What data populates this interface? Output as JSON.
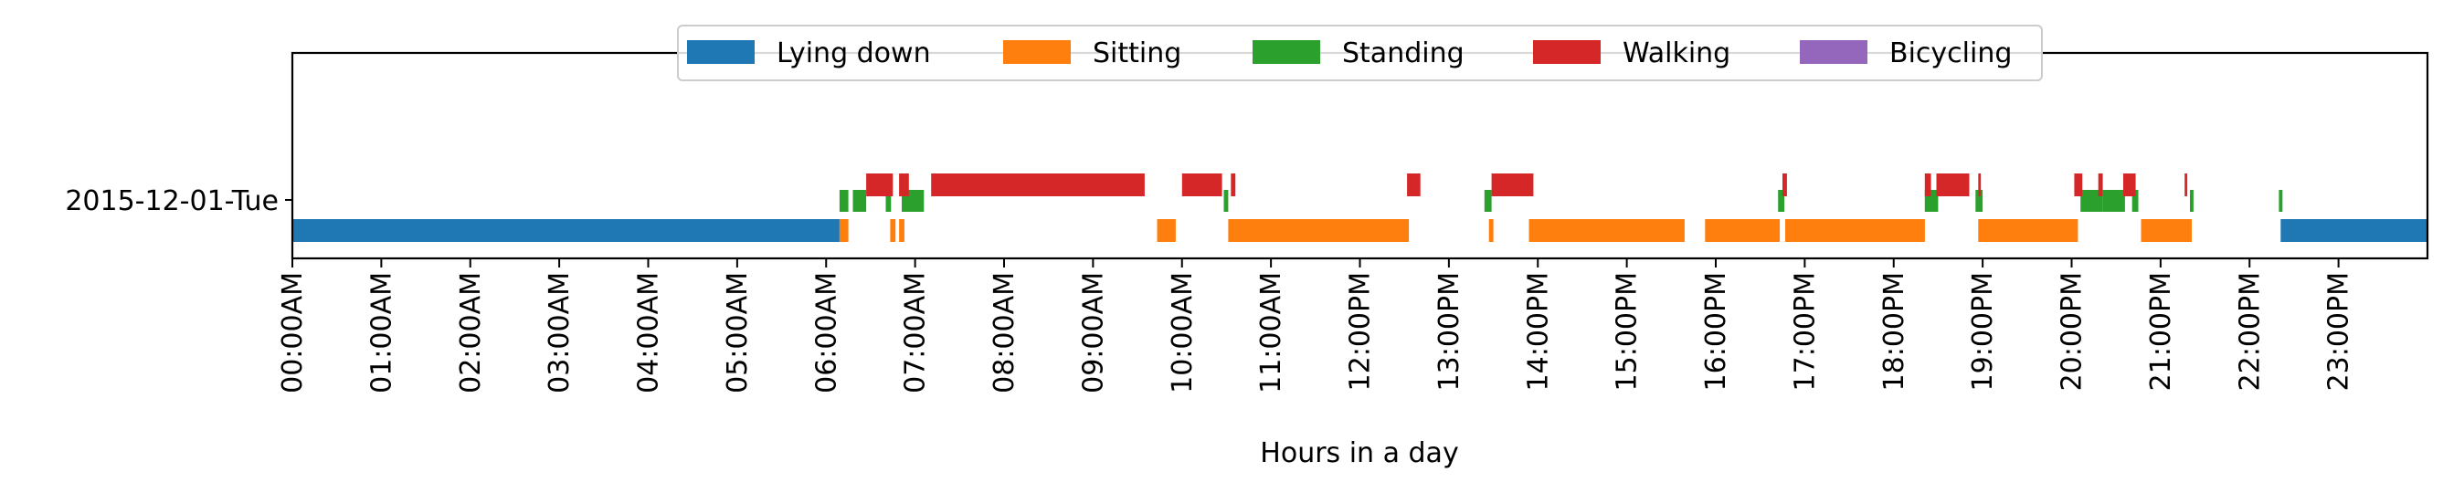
{
  "chart_data": {
    "type": "timeline",
    "title": "",
    "xlabel": "Hours in a day",
    "ylabel": "",
    "xlim": [
      0,
      24
    ],
    "grid": false,
    "legend_position": "top-center",
    "row_label": "2015-12-01-Tue",
    "x_tick_labels": [
      "00:00AM",
      "01:00AM",
      "02:00AM",
      "03:00AM",
      "04:00AM",
      "05:00AM",
      "06:00AM",
      "07:00AM",
      "08:00AM",
      "09:00AM",
      "10:00AM",
      "11:00AM",
      "12:00PM",
      "13:00PM",
      "14:00PM",
      "15:00PM",
      "16:00PM",
      "17:00PM",
      "18:00PM",
      "19:00PM",
      "20:00PM",
      "21:00PM",
      "22:00PM",
      "23:00PM"
    ],
    "series": [
      {
        "name": "Lying down",
        "color": "#1f77b4",
        "lane": "bottom",
        "segments": [
          [
            0.0,
            6.15
          ],
          [
            22.35,
            24.0
          ]
        ]
      },
      {
        "name": "Sitting",
        "color": "#ff7f0e",
        "lane": "bottom",
        "segments": [
          [
            6.15,
            6.25
          ],
          [
            6.72,
            6.78
          ],
          [
            6.82,
            6.88
          ],
          [
            9.72,
            9.93
          ],
          [
            10.52,
            12.55
          ],
          [
            13.45,
            13.5
          ],
          [
            13.9,
            15.65
          ],
          [
            15.88,
            16.72
          ],
          [
            16.78,
            18.35
          ],
          [
            18.95,
            20.07
          ],
          [
            20.78,
            21.35
          ]
        ]
      },
      {
        "name": "Standing",
        "color": "#2ca02c",
        "lane": "middle",
        "segments": [
          [
            6.15,
            6.25
          ],
          [
            6.3,
            6.45
          ],
          [
            6.67,
            6.73
          ],
          [
            6.85,
            7.1
          ],
          [
            10.47,
            10.52
          ],
          [
            13.4,
            13.48
          ],
          [
            16.7,
            16.77
          ],
          [
            18.35,
            18.5
          ],
          [
            18.92,
            19.0
          ],
          [
            20.1,
            20.35
          ],
          [
            20.35,
            20.6
          ],
          [
            20.68,
            20.75
          ],
          [
            21.33,
            21.37
          ],
          [
            22.33,
            22.37
          ]
        ]
      },
      {
        "name": "Walking",
        "color": "#d62728",
        "lane": "top",
        "segments": [
          [
            6.45,
            6.75
          ],
          [
            6.82,
            6.93
          ],
          [
            7.18,
            9.58
          ],
          [
            10.0,
            10.45
          ],
          [
            10.55,
            10.6
          ],
          [
            12.53,
            12.68
          ],
          [
            13.48,
            13.95
          ],
          [
            16.75,
            16.8
          ],
          [
            18.35,
            18.42
          ],
          [
            18.48,
            18.85
          ],
          [
            18.95,
            18.98
          ],
          [
            20.03,
            20.12
          ],
          [
            20.3,
            20.35
          ],
          [
            20.58,
            20.72
          ],
          [
            21.27,
            21.3
          ]
        ]
      },
      {
        "name": "Bicycling",
        "color": "#9467bd",
        "lane": "top",
        "segments": []
      }
    ]
  }
}
